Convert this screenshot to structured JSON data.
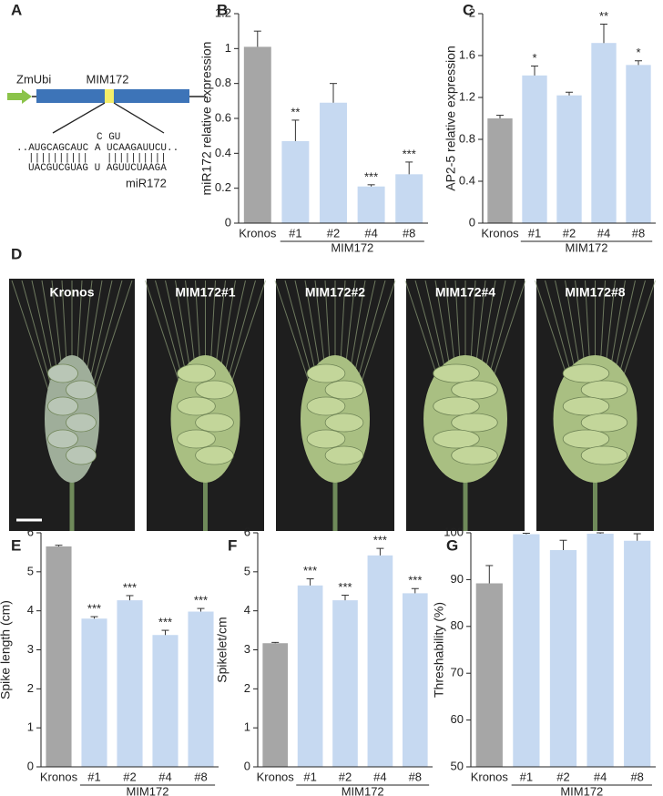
{
  "panel_labels": [
    "A",
    "B",
    "C",
    "D",
    "E",
    "F",
    "G"
  ],
  "diagram": {
    "promoter": "ZmUbi",
    "construct": "MIM172",
    "bulge": "C GU",
    "target_seq": "..AUGCAGCAUC A UCAAGAUUCU..",
    "pairing": "||||||||||   ||||||||||",
    "mirna_seq": "UACGUCGUAG U AGUUCUAAGA",
    "mirna": "miR172"
  },
  "photos": {
    "labels": [
      "Kronos",
      "MIM172#1",
      "MIM172#2",
      "MIM172#4",
      "MIM172#8"
    ]
  },
  "chart_data": [
    {
      "type": "bar",
      "y_label": "miR172 relative expression",
      "categories": [
        "Kronos",
        "#1",
        "#2",
        "#4",
        "#8"
      ],
      "group_label": "MIM172",
      "colors": [
        "#a6a6a6",
        "#c6d9f1",
        "#c6d9f1",
        "#c6d9f1",
        "#c6d9f1"
      ],
      "values": [
        1.01,
        0.47,
        0.69,
        0.21,
        0.28
      ],
      "errors": [
        0.09,
        0.12,
        0.11,
        0.01,
        0.07
      ],
      "annotations": [
        null,
        "**",
        null,
        "***",
        "***"
      ],
      "ylim": [
        0,
        1.2
      ],
      "yticks": [
        0,
        0.2,
        0.4,
        0.6,
        0.8,
        1,
        1.2
      ]
    },
    {
      "type": "bar",
      "y_label": "AP2-5 relative expression",
      "categories": [
        "Kronos",
        "#1",
        "#2",
        "#4",
        "#8"
      ],
      "group_label": "MIM172",
      "colors": [
        "#a6a6a6",
        "#c6d9f1",
        "#c6d9f1",
        "#c6d9f1",
        "#c6d9f1"
      ],
      "values": [
        1.0,
        1.41,
        1.22,
        1.72,
        1.51
      ],
      "errors": [
        0.03,
        0.09,
        0.03,
        0.18,
        0.04
      ],
      "annotations": [
        null,
        "*",
        null,
        "**",
        "*"
      ],
      "ylim": [
        0,
        2
      ],
      "yticks": [
        0,
        0.4,
        0.8,
        1.2,
        1.6,
        2
      ]
    },
    {
      "type": "bar",
      "y_label": "Spike length (cm)",
      "categories": [
        "Kronos",
        "#1",
        "#2",
        "#4",
        "#8"
      ],
      "group_label": "MIM172",
      "colors": [
        "#a6a6a6",
        "#c6d9f1",
        "#c6d9f1",
        "#c6d9f1",
        "#c6d9f1"
      ],
      "values": [
        5.65,
        3.8,
        4.27,
        3.38,
        3.98
      ],
      "errors": [
        0.03,
        0.05,
        0.12,
        0.12,
        0.08
      ],
      "annotations": [
        null,
        "***",
        "***",
        "***",
        "***"
      ],
      "ylim": [
        0,
        6
      ],
      "yticks": [
        0,
        1,
        2,
        3,
        4,
        5,
        6
      ]
    },
    {
      "type": "bar",
      "y_label": "Spikelet/cm",
      "categories": [
        "Kronos",
        "#1",
        "#2",
        "#4",
        "#8"
      ],
      "group_label": "MIM172",
      "colors": [
        "#a6a6a6",
        "#c6d9f1",
        "#c6d9f1",
        "#c6d9f1",
        "#c6d9f1"
      ],
      "values": [
        3.17,
        4.65,
        4.27,
        5.42,
        4.45
      ],
      "errors": [
        0.02,
        0.17,
        0.13,
        0.18,
        0.12
      ],
      "annotations": [
        null,
        "***",
        "***",
        "***",
        "***"
      ],
      "ylim": [
        0,
        6
      ],
      "yticks": [
        0,
        1,
        2,
        3,
        4,
        5,
        6
      ]
    },
    {
      "type": "bar",
      "y_label": "Threshability (%)",
      "categories": [
        "Kronos",
        "#1",
        "#2",
        "#4",
        "#8"
      ],
      "group_label": "MIM172",
      "colors": [
        "#a6a6a6",
        "#c6d9f1",
        "#c6d9f1",
        "#c6d9f1",
        "#c6d9f1"
      ],
      "values": [
        89.2,
        99.7,
        96.3,
        99.8,
        98.3
      ],
      "errors": [
        3.8,
        0.2,
        2.1,
        0.2,
        1.5
      ],
      "annotations": [
        null,
        null,
        null,
        null,
        null
      ],
      "ylim": [
        50,
        100
      ],
      "yticks": [
        50,
        60,
        70,
        80,
        90,
        100
      ]
    }
  ]
}
